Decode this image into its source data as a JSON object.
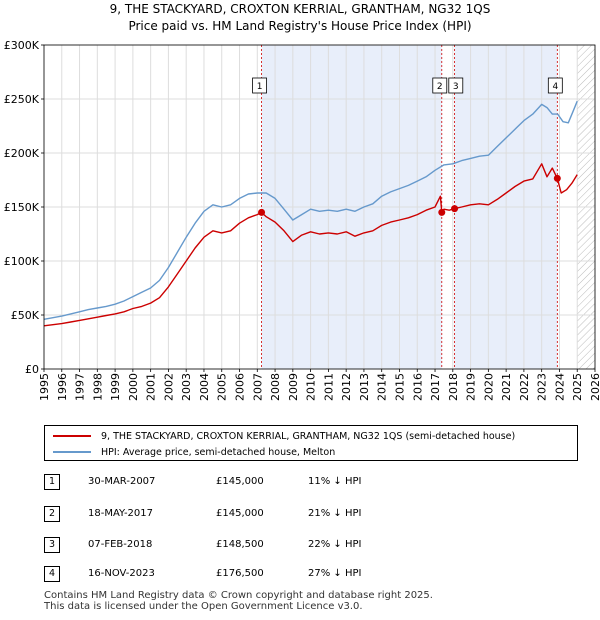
{
  "colors": {
    "red": "#cc0000",
    "blue": "#6699cc",
    "shade": "#e8eefa",
    "grid": "#dddddd"
  },
  "chart_data": {
    "type": "line",
    "title": "9, THE STACKYARD, CROXTON KERRIAL, GRANTHAM, NG32 1QS",
    "subtitle": "Price paid vs. HM Land Registry's House Price Index (HPI)",
    "xlim": [
      1995,
      2026
    ],
    "ylim": [
      0,
      300000
    ],
    "y_ticks": [
      0,
      50000,
      100000,
      150000,
      200000,
      250000,
      300000
    ],
    "y_tick_labels": [
      "£0",
      "£50K",
      "£100K",
      "£150K",
      "£200K",
      "£250K",
      "£300K"
    ],
    "x_ticks": [
      "1995",
      "1996",
      "1997",
      "1998",
      "1999",
      "2000",
      "2001",
      "2002",
      "2003",
      "2004",
      "2005",
      "2006",
      "2007",
      "2008",
      "2009",
      "2010",
      "2011",
      "2012",
      "2013",
      "2014",
      "2015",
      "2016",
      "2017",
      "2018",
      "2019",
      "2020",
      "2021",
      "2022",
      "2023",
      "2024",
      "2025",
      "2026"
    ],
    "shaded_ranges": [
      [
        2007.24,
        2017.38
      ],
      [
        2018.1,
        2023.88
      ]
    ],
    "hatch_from": 2025.0,
    "series": [
      {
        "name": "9, THE STACKYARD, CROXTON KERRIAL, GRANTHAM, NG32 1QS (semi-detached house)",
        "x": [
          1995,
          1995.5,
          1996,
          1996.5,
          1997,
          1997.5,
          1998,
          1998.5,
          1999,
          1999.5,
          2000,
          2000.5,
          2001,
          2001.5,
          2002,
          2002.5,
          2003,
          2003.5,
          2004,
          2004.5,
          2005,
          2005.5,
          2006,
          2006.5,
          2007,
          2007.24,
          2007.5,
          2008,
          2008.5,
          2009,
          2009.5,
          2010,
          2010.5,
          2011,
          2011.5,
          2012,
          2012.5,
          2013,
          2013.5,
          2014,
          2014.5,
          2015,
          2015.5,
          2016,
          2016.5,
          2017,
          2017.3,
          2017.38,
          2017.5,
          2017.8,
          2018.1,
          2018.5,
          2019,
          2019.5,
          2020,
          2020.5,
          2021,
          2021.5,
          2022,
          2022.5,
          2023,
          2023.3,
          2023.6,
          2023.88,
          2024.1,
          2024.4,
          2024.7,
          2025
        ],
        "values": [
          40000,
          41000,
          42000,
          43500,
          45000,
          46500,
          48000,
          49500,
          51000,
          53000,
          56000,
          58000,
          61000,
          66000,
          76000,
          88000,
          100000,
          112000,
          122000,
          128000,
          126000,
          128000,
          135000,
          140000,
          143000,
          145000,
          141000,
          136000,
          128000,
          118000,
          124000,
          127000,
          125000,
          126000,
          125000,
          127000,
          123000,
          126000,
          128000,
          133000,
          136000,
          138000,
          140000,
          143000,
          147000,
          150000,
          160000,
          145000,
          148000,
          147000,
          148500,
          150000,
          152000,
          153000,
          152000,
          157000,
          163000,
          169000,
          174000,
          176000,
          190000,
          178000,
          186000,
          176500,
          163000,
          166000,
          172000,
          180000
        ]
      },
      {
        "name": "HPI: Average price, semi-detached house, Melton",
        "x": [
          1995,
          1995.5,
          1996,
          1996.5,
          1997,
          1997.5,
          1998,
          1998.5,
          1999,
          1999.5,
          2000,
          2000.5,
          2001,
          2001.5,
          2002,
          2002.5,
          2003,
          2003.5,
          2004,
          2004.5,
          2005,
          2005.5,
          2006,
          2006.5,
          2007,
          2007.5,
          2008,
          2008.5,
          2009,
          2009.5,
          2010,
          2010.5,
          2011,
          2011.5,
          2012,
          2012.5,
          2013,
          2013.5,
          2014,
          2014.5,
          2015,
          2015.5,
          2016,
          2016.5,
          2017,
          2017.5,
          2018,
          2018.5,
          2019,
          2019.5,
          2020,
          2020.5,
          2021,
          2021.5,
          2022,
          2022.5,
          2023,
          2023.3,
          2023.6,
          2023.9,
          2024.2,
          2024.5,
          2024.8,
          2025
        ],
        "values": [
          46000,
          47500,
          49000,
          51000,
          53000,
          55000,
          56500,
          58000,
          60000,
          63000,
          67000,
          71000,
          75000,
          82000,
          94000,
          108000,
          122000,
          135000,
          146000,
          152000,
          150000,
          152000,
          158000,
          162000,
          163000,
          163000,
          158000,
          148000,
          138000,
          143000,
          148000,
          146000,
          147000,
          146000,
          148000,
          146000,
          150000,
          153000,
          160000,
          164000,
          167000,
          170000,
          174000,
          178000,
          184000,
          189000,
          190000,
          193000,
          195000,
          197000,
          198000,
          206000,
          214000,
          222000,
          230000,
          236000,
          245000,
          242000,
          236000,
          236000,
          229000,
          228000,
          240000,
          248000
        ]
      }
    ],
    "markers": [
      {
        "label": "1",
        "x": 2007.24,
        "y": 145000
      },
      {
        "label": "2",
        "x": 2017.38,
        "y": 145000
      },
      {
        "label": "3",
        "x": 2018.1,
        "y": 148500
      },
      {
        "label": "4",
        "x": 2023.88,
        "y": 176500
      }
    ]
  },
  "legend": {
    "red_label": "9, THE STACKYARD, CROXTON KERRIAL, GRANTHAM, NG32 1QS (semi-detached house)",
    "blue_label": "HPI: Average price, semi-detached house, Melton"
  },
  "transactions": [
    {
      "num": "1",
      "date": "30-MAR-2007",
      "price": "£145,000",
      "hpi": "11% ↓ HPI"
    },
    {
      "num": "2",
      "date": "18-MAY-2017",
      "price": "£145,000",
      "hpi": "21% ↓ HPI"
    },
    {
      "num": "3",
      "date": "07-FEB-2018",
      "price": "£148,500",
      "hpi": "22% ↓ HPI"
    },
    {
      "num": "4",
      "date": "16-NOV-2023",
      "price": "£176,500",
      "hpi": "27% ↓ HPI"
    }
  ],
  "footer": {
    "line1": "Contains HM Land Registry data © Crown copyright and database right 2025.",
    "line2": "This data is licensed under the Open Government Licence v3.0."
  }
}
